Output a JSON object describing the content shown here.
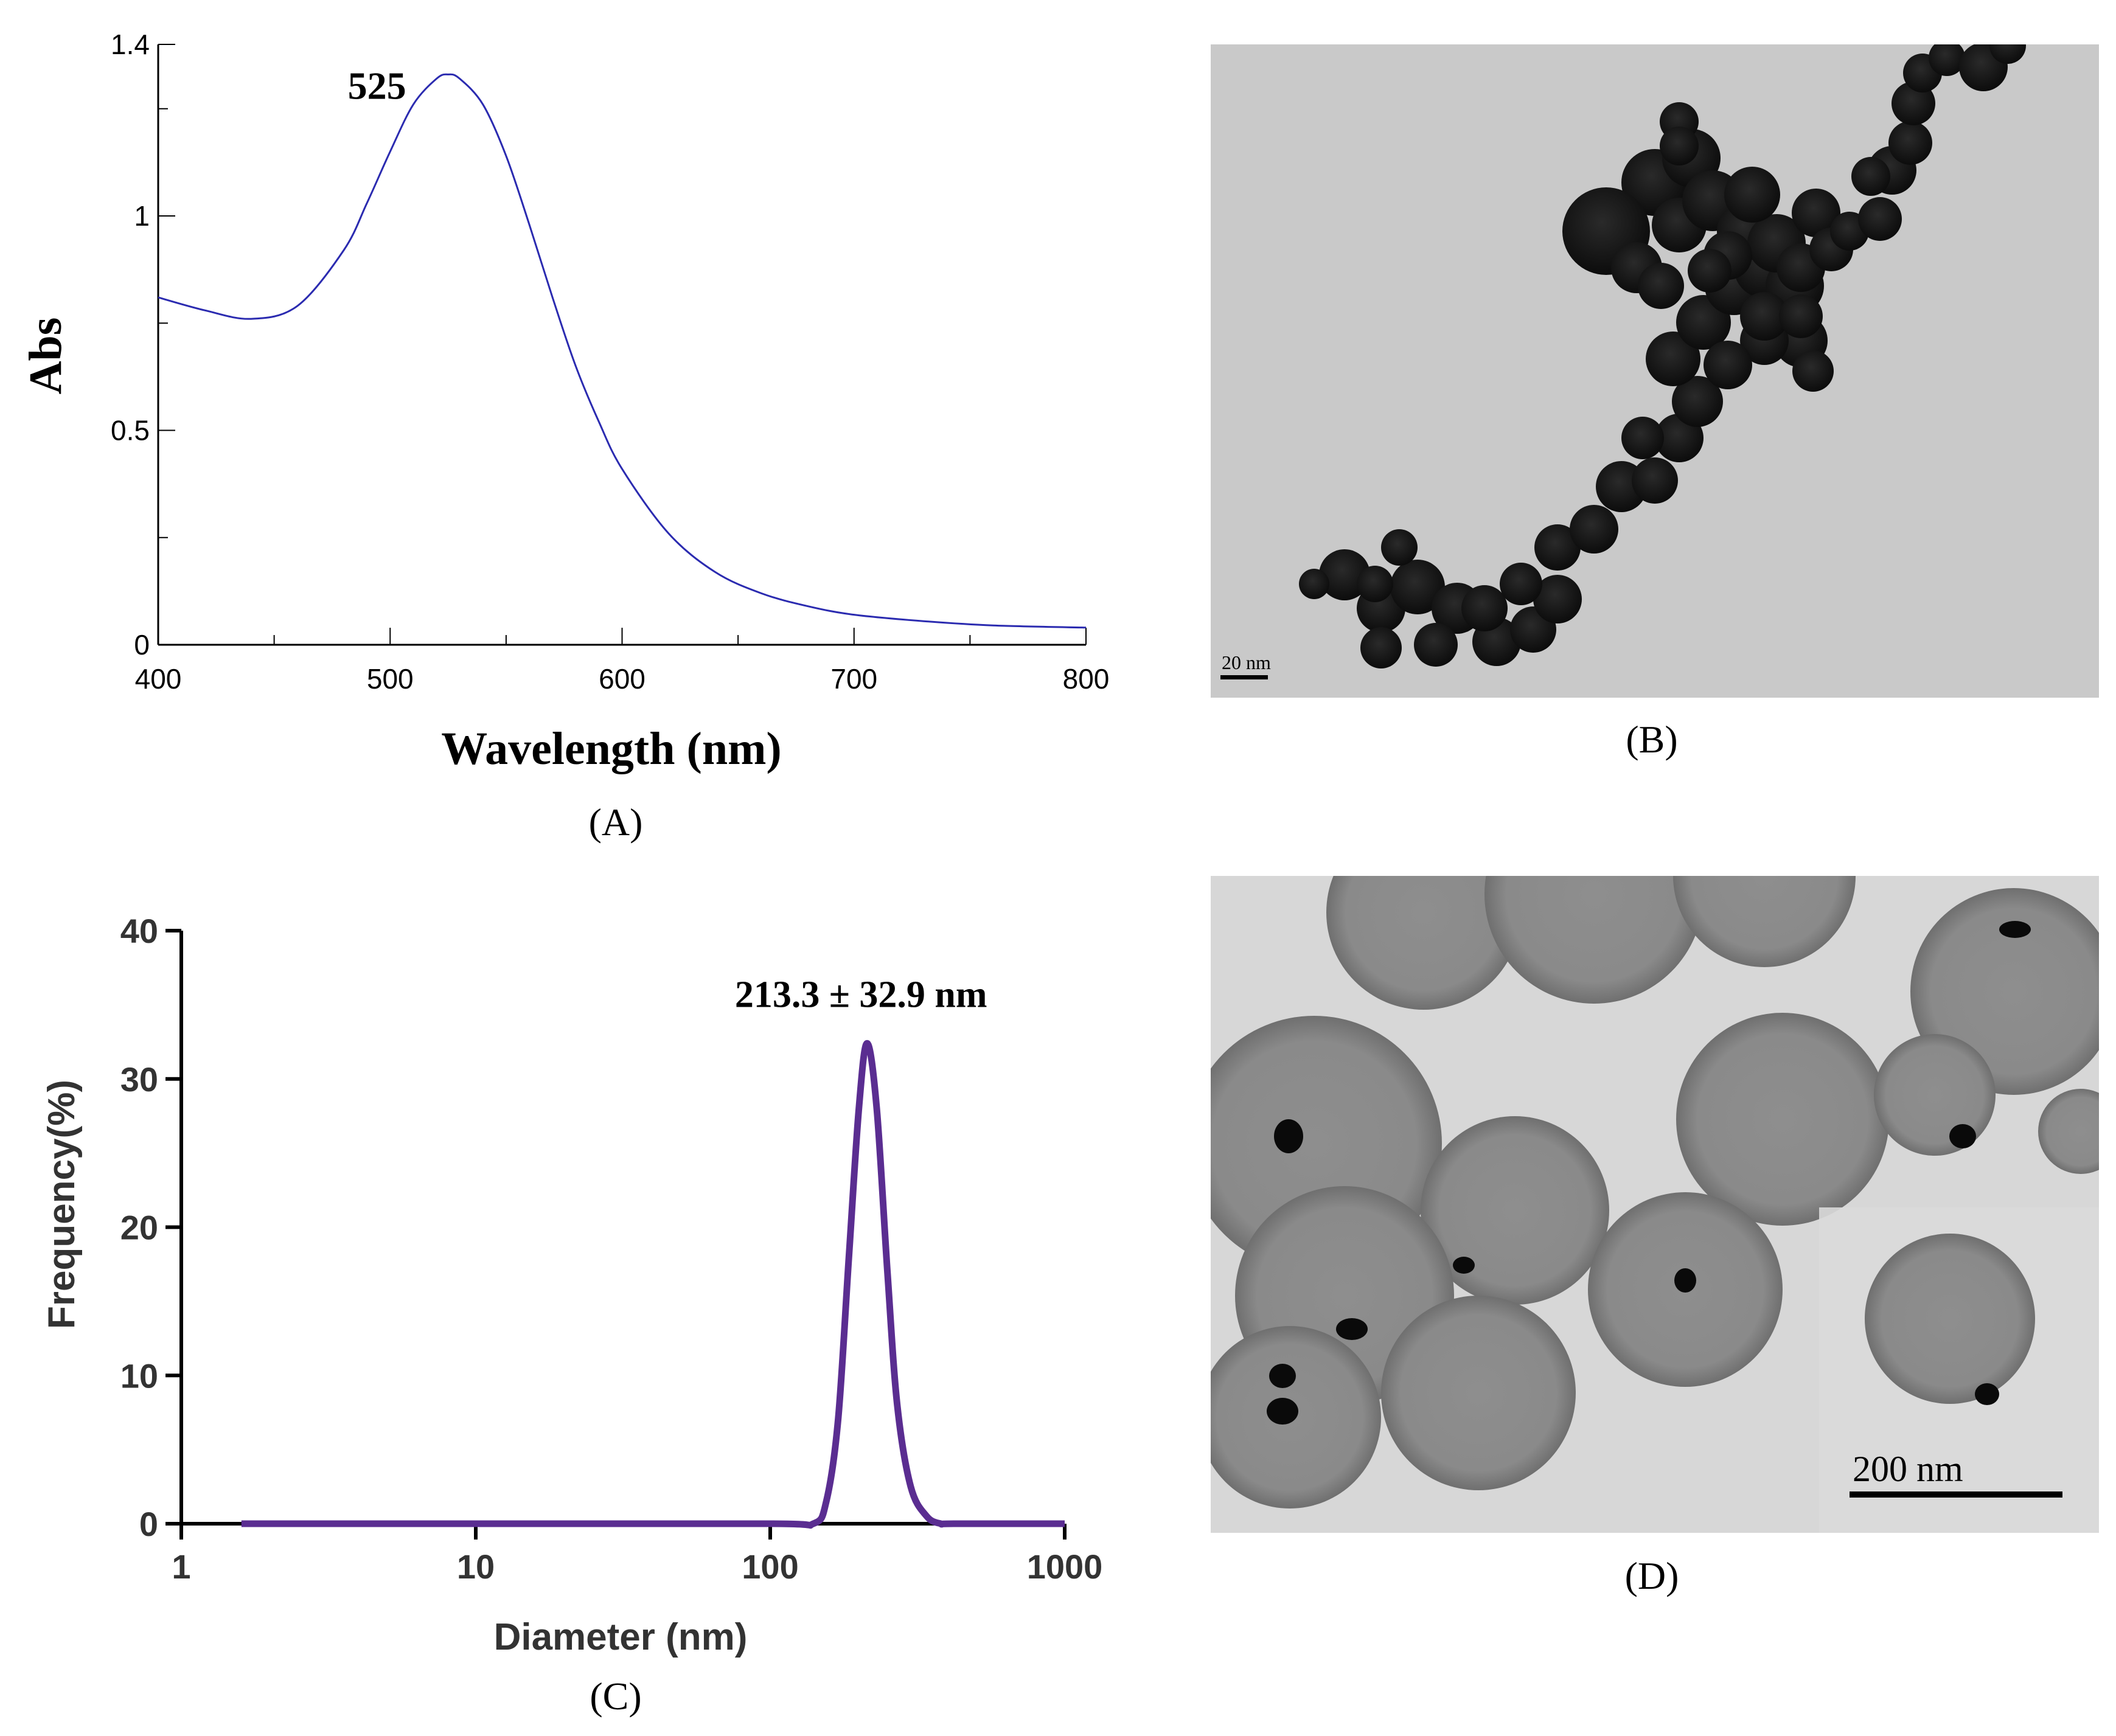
{
  "panels": {
    "A": {
      "caption": "(A)"
    },
    "B": {
      "caption": "(B)",
      "scale_bar_label": "20 nm"
    },
    "C": {
      "caption": "(C)"
    },
    "D": {
      "caption": "(D)",
      "scale_bar_label": "200 nm"
    }
  },
  "colors": {
    "uv_line": "#2b2bb0",
    "dls_line": "#5a2d91",
    "tem_b_background": "#c9c9c9",
    "tem_d_background": "#d7d7d7"
  },
  "chart_data": [
    {
      "id": "A",
      "type": "line",
      "xlabel": "Wavelength (nm)",
      "ylabel": "Abs",
      "xlim": [
        400,
        800
      ],
      "ylim": [
        0,
        1.4
      ],
      "x_ticks": [
        400,
        500,
        600,
        700,
        800
      ],
      "x_tick_labels": [
        "400",
        "500",
        "600",
        "700",
        "800"
      ],
      "y_ticks": [
        0,
        0.5,
        1,
        1.4
      ],
      "y_tick_labels": [
        "0",
        "0.5",
        "1",
        "1.4"
      ],
      "annotation": {
        "text": "525",
        "x": 525,
        "y": 1.33
      },
      "series": [
        {
          "x": [
            400,
            420,
            440,
            460,
            480,
            490,
            500,
            510,
            520,
            525,
            530,
            540,
            550,
            560,
            570,
            580,
            590,
            600,
            620,
            640,
            660,
            680,
            700,
            730,
            760,
            800
          ],
          "y": [
            0.81,
            0.78,
            0.76,
            0.79,
            0.92,
            1.03,
            1.15,
            1.26,
            1.32,
            1.33,
            1.32,
            1.26,
            1.14,
            0.98,
            0.81,
            0.65,
            0.52,
            0.41,
            0.26,
            0.17,
            0.12,
            0.09,
            0.07,
            0.055,
            0.045,
            0.04
          ]
        }
      ]
    },
    {
      "id": "C",
      "type": "line",
      "xlabel": "Diameter (nm)",
      "ylabel": "Frequency(%)",
      "x_scale": "log",
      "xlim": [
        1,
        1000
      ],
      "ylim": [
        0,
        40
      ],
      "x_ticks": [
        1,
        10,
        100,
        1000
      ],
      "x_tick_labels": [
        "1",
        "10",
        "100",
        "1000"
      ],
      "y_ticks": [
        0,
        10,
        20,
        30,
        40
      ],
      "y_tick_labels": [
        "0",
        "10",
        "20",
        "30",
        "40"
      ],
      "annotation": {
        "text": "213.3 ± 32.9 nm",
        "x": 213.3,
        "y": 32.4
      },
      "series": [
        {
          "x": [
            1.6,
            10,
            100,
            140,
            155,
            170,
            185,
            200,
            213.3,
            230,
            250,
            270,
            300,
            340,
            380,
            420,
            1000
          ],
          "y": [
            0,
            0,
            0,
            0,
            1.5,
            7,
            18,
            28,
            32.4,
            28,
            17,
            8,
            2.5,
            0.5,
            0,
            0,
            0
          ]
        }
      ]
    }
  ]
}
